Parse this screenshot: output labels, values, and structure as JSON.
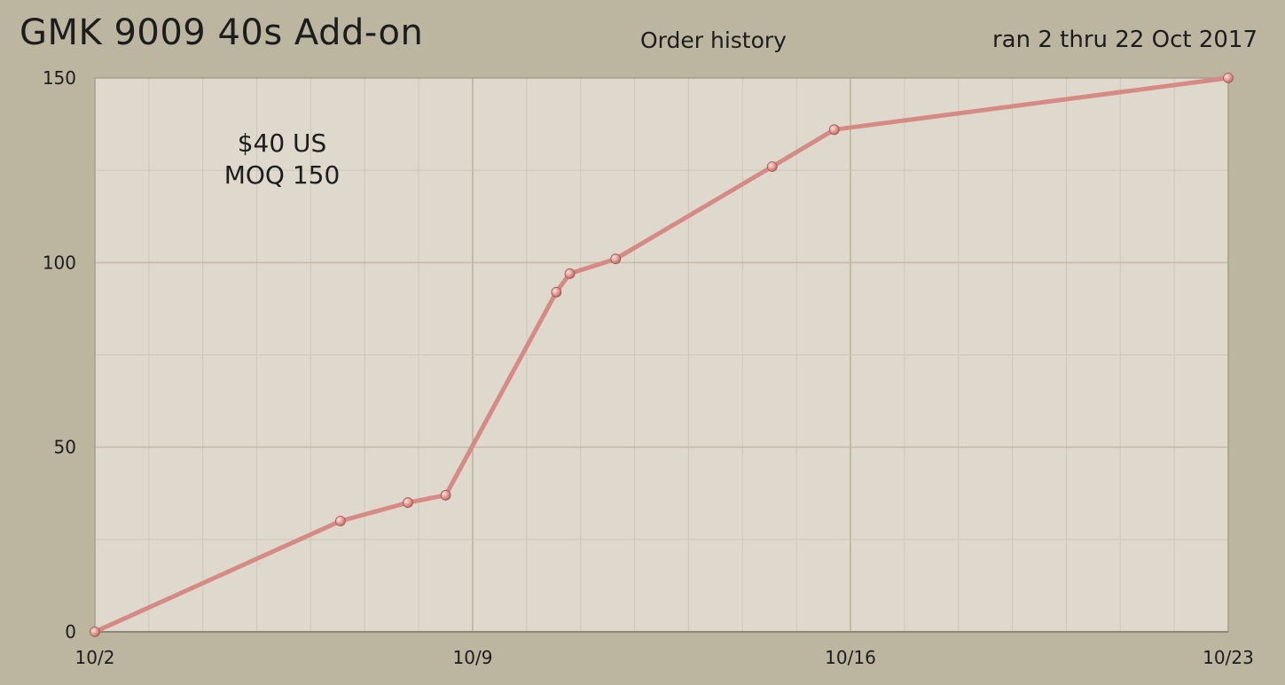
{
  "header": {
    "title": "GMK 9009 40s Add-on",
    "subtitle": "Order history",
    "date_range": "ran 2 thru 22 Oct 2017"
  },
  "annotation": {
    "line1": "$40 US",
    "line2": "MOQ 150"
  },
  "colors": {
    "background": "#bcb5a0",
    "plot_area": "#dfd8cc",
    "grid_minor": "#cec6b7",
    "grid_major": "#c2b9a6",
    "line": "#d68a86",
    "marker": "#e9a6a2"
  },
  "chart_data": {
    "type": "line",
    "x_unit": "days in October 2017",
    "xlim": [
      2,
      23
    ],
    "ylim": [
      0,
      150
    ],
    "x_ticks": [
      {
        "value": 2,
        "label": "10/2"
      },
      {
        "value": 9,
        "label": "10/9"
      },
      {
        "value": 16,
        "label": "10/16"
      },
      {
        "value": 23,
        "label": "10/23"
      }
    ],
    "y_ticks": [
      0,
      50,
      100,
      150
    ],
    "grid": true,
    "series": [
      {
        "points": [
          {
            "x": 2.0,
            "y": 0
          },
          {
            "x": 6.55,
            "y": 30
          },
          {
            "x": 7.8,
            "y": 35
          },
          {
            "x": 8.5,
            "y": 37
          },
          {
            "x": 10.55,
            "y": 92
          },
          {
            "x": 10.8,
            "y": 97
          },
          {
            "x": 11.65,
            "y": 101
          },
          {
            "x": 14.55,
            "y": 126
          },
          {
            "x": 15.7,
            "y": 136
          },
          {
            "x": 23.0,
            "y": 150
          }
        ]
      }
    ]
  }
}
